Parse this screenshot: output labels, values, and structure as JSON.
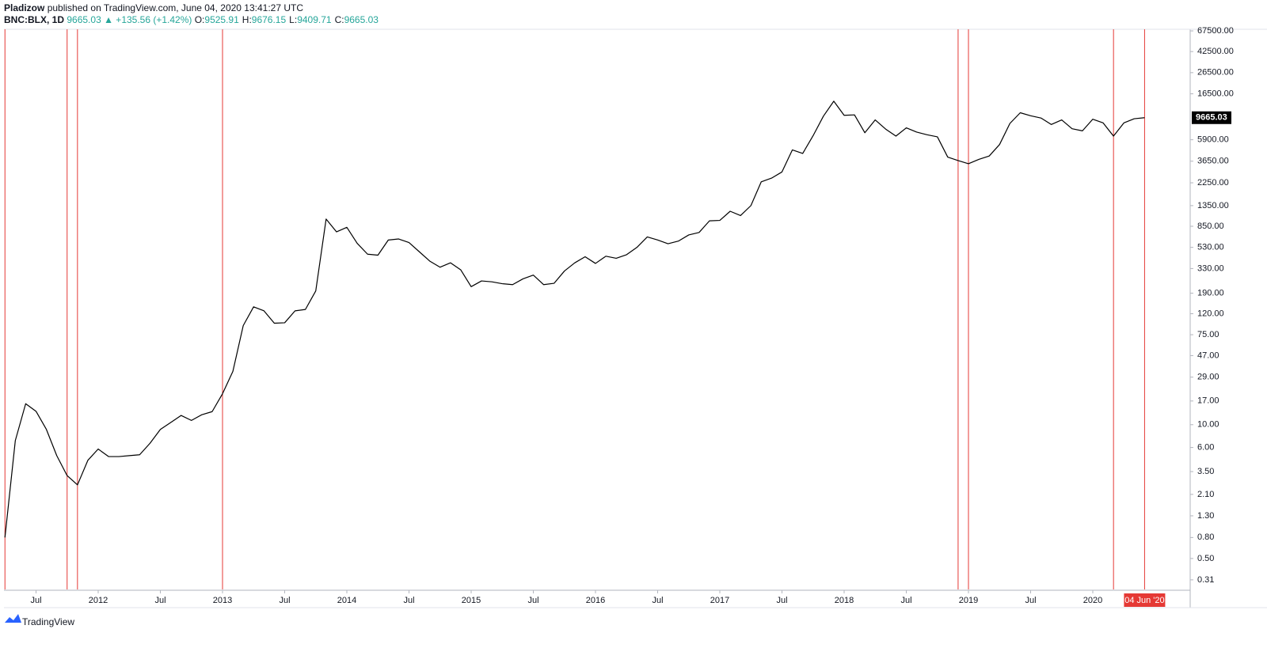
{
  "chart_data": {
    "type": "line",
    "header": {
      "author": "Pladizow",
      "published": "published on TradingView.com, June 04, 2020 13:41:27 UTC",
      "symbol": "BNC:BLX, 1D",
      "last": 9665.03,
      "change": "▲ +135.56 (+1.42%)",
      "ohlc": [
        {
          "label": "O:",
          "value": 9525.91
        },
        {
          "label": "H:",
          "value": 9676.15
        },
        {
          "label": "L:",
          "value": 9409.71
        },
        {
          "label": "C:",
          "value": 9665.03
        }
      ]
    },
    "brand": "TradingView",
    "log_scale": true,
    "grid": false,
    "color": "#000000",
    "marker_color": "#e53935",
    "value_color": "#26a69a",
    "x": [
      "2011-04",
      "2011-05",
      "2011-06",
      "2011-07",
      "2011-08",
      "2011-09",
      "2011-10",
      "2011-11",
      "2011-12",
      "2012-01",
      "2012-02",
      "2012-03",
      "2012-04",
      "2012-05",
      "2012-06",
      "2012-07",
      "2012-08",
      "2012-09",
      "2012-10",
      "2012-11",
      "2012-12",
      "2013-01",
      "2013-02",
      "2013-03",
      "2013-04",
      "2013-05",
      "2013-06",
      "2013-07",
      "2013-08",
      "2013-09",
      "2013-10",
      "2013-11",
      "2013-12",
      "2014-01",
      "2014-02",
      "2014-03",
      "2014-04",
      "2014-05",
      "2014-06",
      "2014-07",
      "2014-08",
      "2014-09",
      "2014-10",
      "2014-11",
      "2014-12",
      "2015-01",
      "2015-02",
      "2015-03",
      "2015-04",
      "2015-05",
      "2015-06",
      "2015-07",
      "2015-08",
      "2015-09",
      "2015-10",
      "2015-11",
      "2015-12",
      "2016-01",
      "2016-02",
      "2016-03",
      "2016-04",
      "2016-05",
      "2016-06",
      "2016-07",
      "2016-08",
      "2016-09",
      "2016-10",
      "2016-11",
      "2016-12",
      "2017-01",
      "2017-02",
      "2017-03",
      "2017-04",
      "2017-05",
      "2017-06",
      "2017-07",
      "2017-08",
      "2017-09",
      "2017-10",
      "2017-11",
      "2017-12",
      "2018-01",
      "2018-02",
      "2018-03",
      "2018-04",
      "2018-05",
      "2018-06",
      "2018-07",
      "2018-08",
      "2018-09",
      "2018-10",
      "2018-11",
      "2018-12",
      "2019-01",
      "2019-02",
      "2019-03",
      "2019-04",
      "2019-05",
      "2019-06",
      "2019-07",
      "2019-08",
      "2019-09",
      "2019-10",
      "2019-11",
      "2019-12",
      "2020-01",
      "2020-02",
      "2020-03",
      "2020-04",
      "2020-05",
      "2020-06"
    ],
    "values": [
      0.8,
      7,
      16,
      13.5,
      9,
      5,
      3.2,
      2.6,
      4.5,
      5.8,
      4.9,
      4.9,
      5.0,
      5.1,
      6.6,
      9.0,
      10.5,
      12.3,
      11.0,
      12.5,
      13.4,
      20,
      33,
      92,
      140,
      128,
      97,
      98,
      128,
      132,
      200,
      1000,
      750,
      830,
      580,
      455,
      445,
      625,
      640,
      590,
      480,
      390,
      340,
      375,
      320,
      220,
      250,
      245,
      235,
      230,
      262,
      285,
      230,
      237,
      312,
      375,
      430,
      370,
      435,
      415,
      450,
      530,
      670,
      625,
      575,
      610,
      700,
      740,
      960,
      970,
      1190,
      1080,
      1350,
      2300,
      2500,
      2870,
      4700,
      4340,
      6450,
      10000,
      14000,
      10200,
      10300,
      6900,
      9200,
      7500,
      6400,
      7700,
      7000,
      6600,
      6300,
      4000,
      3700,
      3450,
      3800,
      4100,
      5300,
      8500,
      10800,
      10100,
      9600,
      8300,
      9200,
      7550,
      7200,
      9350,
      8600,
      6400,
      8600,
      9450,
      9665.03
    ],
    "xlim": [
      "2011-04",
      "2020-10"
    ],
    "xticks": [
      {
        "value": "2011-07",
        "label": "Jul"
      },
      {
        "value": "2012-01",
        "label": "2012"
      },
      {
        "value": "2012-07",
        "label": "Jul"
      },
      {
        "value": "2013-01",
        "label": "2013"
      },
      {
        "value": "2013-07",
        "label": "Jul"
      },
      {
        "value": "2014-01",
        "label": "2014"
      },
      {
        "value": "2014-07",
        "label": "Jul"
      },
      {
        "value": "2015-01",
        "label": "2015"
      },
      {
        "value": "2015-07",
        "label": "Jul"
      },
      {
        "value": "2016-01",
        "label": "2016"
      },
      {
        "value": "2016-07",
        "label": "Jul"
      },
      {
        "value": "2017-01",
        "label": "2017"
      },
      {
        "value": "2017-07",
        "label": "Jul"
      },
      {
        "value": "2018-01",
        "label": "2018"
      },
      {
        "value": "2018-07",
        "label": "Jul"
      },
      {
        "value": "2019-01",
        "label": "2019"
      },
      {
        "value": "2019-07",
        "label": "Jul"
      },
      {
        "value": "2020-01",
        "label": "2020"
      }
    ],
    "ylim": [
      0.25,
      70000
    ],
    "yticks": [
      {
        "value": 67500,
        "label": "67500.00"
      },
      {
        "value": 42500,
        "label": "42500.00"
      },
      {
        "value": 26500,
        "label": "26500.00"
      },
      {
        "value": 16500,
        "label": "16500.00"
      },
      {
        "value": 5900,
        "label": "5900.00"
      },
      {
        "value": 3650,
        "label": "3650.00"
      },
      {
        "value": 2250,
        "label": "2250.00"
      },
      {
        "value": 1350,
        "label": "1350.00"
      },
      {
        "value": 850,
        "label": "850.00"
      },
      {
        "value": 530,
        "label": "530.00"
      },
      {
        "value": 330,
        "label": "330.00"
      },
      {
        "value": 190,
        "label": "190.00"
      },
      {
        "value": 120,
        "label": "120.00"
      },
      {
        "value": 75,
        "label": "75.00"
      },
      {
        "value": 47,
        "label": "47.00"
      },
      {
        "value": 29,
        "label": "29.00"
      },
      {
        "value": 17,
        "label": "17.00"
      },
      {
        "value": 10,
        "label": "10.00"
      },
      {
        "value": 6,
        "label": "6.00"
      },
      {
        "value": 3.5,
        "label": "3.50"
      },
      {
        "value": 2.1,
        "label": "2.10"
      },
      {
        "value": 1.3,
        "label": "1.30"
      },
      {
        "value": 0.8,
        "label": "0.80"
      },
      {
        "value": 0.5,
        "label": "0.50"
      },
      {
        "value": 0.31,
        "label": "0.31"
      }
    ],
    "markers": [
      "2011-04",
      "2011-10",
      "2011-11",
      "2013-01",
      "2018-12",
      "2019-01",
      "2020-03",
      "2020-06"
    ],
    "marker_label": "04 Jun '20"
  }
}
